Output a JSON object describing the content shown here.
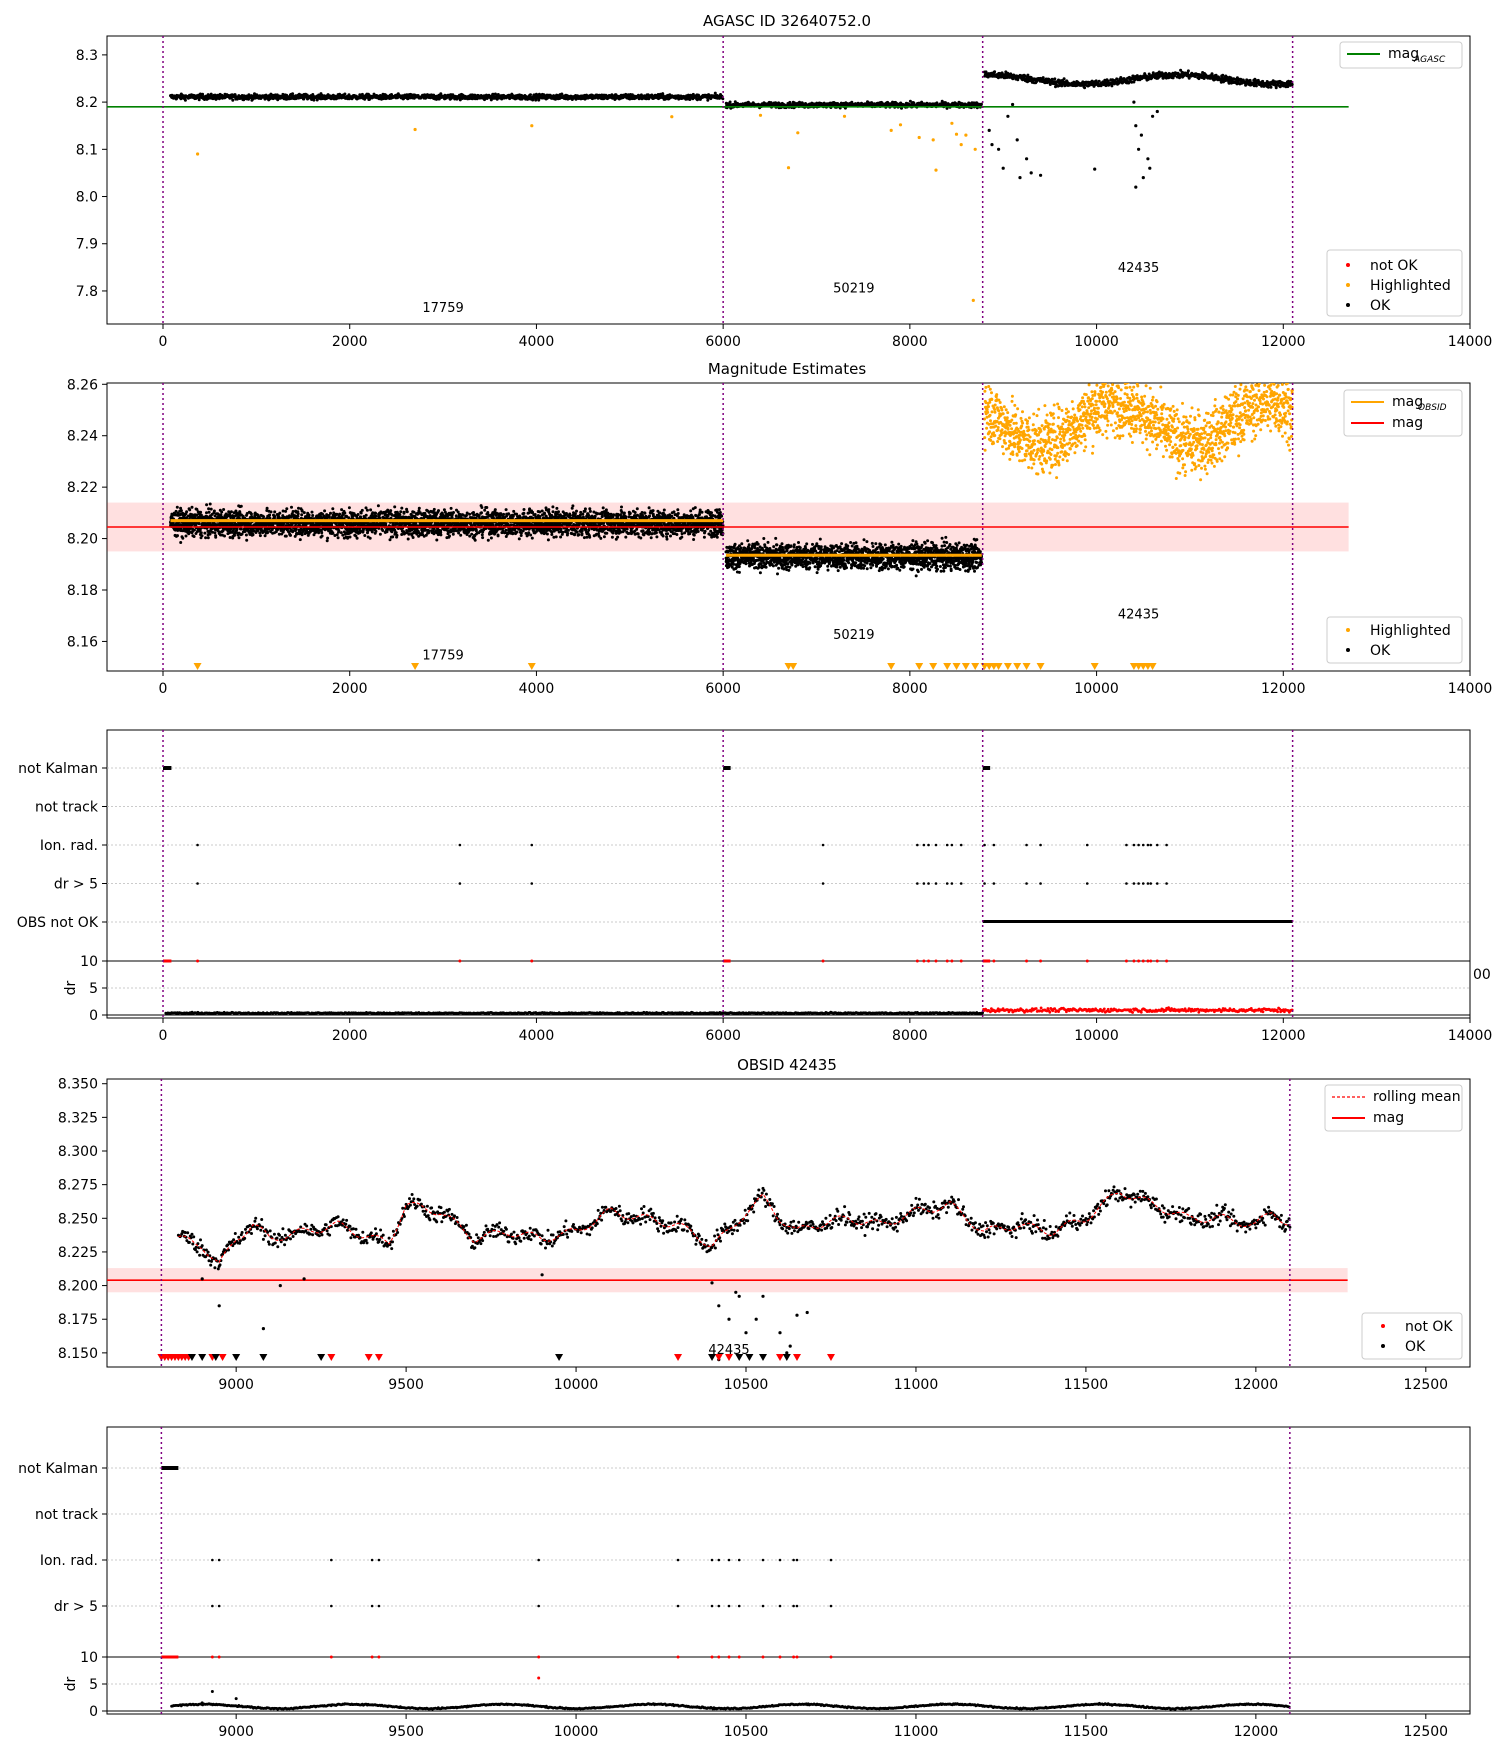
{
  "figure": {
    "title": "AGASC ID 32640752.0"
  },
  "chart_data": [
    {
      "type": "scatter",
      "title": "AGASC ID 32640752.0",
      "xlabel": "",
      "ylabel": "",
      "xlim": [
        -600,
        14000
      ],
      "ylim": [
        7.73,
        8.34
      ],
      "xticks": [
        0,
        2000,
        4000,
        6000,
        8000,
        10000,
        12000,
        14000
      ],
      "yticks": [
        7.8,
        7.9,
        8.0,
        8.1,
        8.2,
        8.3
      ],
      "obs_boundaries": [
        0,
        6000,
        8780,
        12100
      ],
      "lines": [
        {
          "name": "mag$_{AGASC}$",
          "label_main": "mag",
          "label_sub": "AGASC",
          "color": "#008000",
          "y": 8.19,
          "x": [
            -600,
            12700
          ]
        }
      ],
      "segments": [
        {
          "obsid": "17759",
          "x": [
            80,
            6000
          ],
          "mean": 8.211,
          "spread": 0.009,
          "label_x": 3000,
          "label_y": 7.755
        },
        {
          "obsid": "50219",
          "x": [
            6030,
            8770
          ],
          "mean": 8.194,
          "spread": 0.009,
          "label_x": 7400,
          "label_y": 7.797
        },
        {
          "obsid": "42435",
          "x": [
            8800,
            12100
          ],
          "mean": 8.248,
          "spread": 0.012,
          "label_x": 10450,
          "label_y": 7.84
        }
      ],
      "highlighted_points": [
        [
          370,
          8.09
        ],
        [
          2700,
          8.142
        ],
        [
          3950,
          8.15
        ],
        [
          5450,
          8.169
        ],
        [
          6400,
          8.172
        ],
        [
          6700,
          8.061
        ],
        [
          6800,
          8.135
        ],
        [
          7300,
          8.17
        ],
        [
          7800,
          8.14
        ],
        [
          7900,
          8.152
        ],
        [
          8100,
          8.125
        ],
        [
          8250,
          8.12
        ],
        [
          8280,
          8.056
        ],
        [
          8450,
          8.155
        ],
        [
          8500,
          8.132
        ],
        [
          8550,
          8.11
        ],
        [
          8600,
          8.13
        ],
        [
          8680,
          7.78
        ],
        [
          8700,
          8.1
        ]
      ],
      "dip_points": [
        [
          8850,
          8.14
        ],
        [
          8880,
          8.11
        ],
        [
          8950,
          8.1
        ],
        [
          9000,
          8.06
        ],
        [
          9050,
          8.17
        ],
        [
          9100,
          8.195
        ],
        [
          9150,
          8.12
        ],
        [
          9180,
          8.04
        ],
        [
          9250,
          8.08
        ],
        [
          9300,
          8.05
        ],
        [
          9400,
          8.045
        ],
        [
          9980,
          8.058
        ],
        [
          10400,
          8.2
        ],
        [
          10420,
          8.15
        ],
        [
          10450,
          8.1
        ],
        [
          10480,
          8.13
        ],
        [
          10500,
          8.04
        ],
        [
          10550,
          8.08
        ],
        [
          10570,
          8.06
        ],
        [
          10600,
          8.17
        ],
        [
          10650,
          8.18
        ],
        [
          10420,
          8.02
        ]
      ],
      "legends": [
        {
          "position": "top-right",
          "entries": [
            "mag$_{AGASC}$"
          ]
        },
        {
          "position": "bottom-right",
          "entries": [
            "not OK",
            "Highlighted",
            "OK"
          ],
          "colors": [
            "#ff0000",
            "#ffa500",
            "#000000"
          ]
        }
      ]
    },
    {
      "type": "scatter",
      "title": "Magnitude Estimates",
      "xlabel": "",
      "ylabel": "",
      "xlim": [
        -600,
        14000
      ],
      "ylim": [
        8.1485,
        8.2605
      ],
      "xticks": [
        0,
        2000,
        4000,
        6000,
        8000,
        10000,
        12000,
        14000
      ],
      "yticks": [
        8.16,
        8.18,
        8.2,
        8.22,
        8.24,
        8.26
      ],
      "obs_boundaries": [
        0,
        6000,
        8780,
        12100
      ],
      "mag_line": {
        "name": "mag",
        "color": "#ff0000",
        "y": 8.2045,
        "band": [
          8.195,
          8.214
        ],
        "x": [
          -600,
          12700
        ]
      },
      "obsid_mag_lines": [
        {
          "x": [
            80,
            6000
          ],
          "y": 8.207
        },
        {
          "x": [
            6030,
            8770
          ],
          "y": 8.1935
        }
      ],
      "segments": [
        {
          "obsid": "17759",
          "x": [
            80,
            6000
          ],
          "mean": 8.206,
          "spread": 0.009,
          "label_x": 3000,
          "label_y": 8.153
        },
        {
          "obsid": "50219",
          "x": [
            6030,
            8770
          ],
          "mean": 8.193,
          "spread": 0.009,
          "label_x": 7400,
          "label_y": 8.161
        },
        {
          "obsid": "42435",
          "x": [
            8800,
            12100
          ],
          "mean": 8.245,
          "spread": 0.013,
          "label_x": 10450,
          "label_y": 8.169,
          "highlighted": true
        }
      ],
      "lower_markers_x": [
        370,
        2700,
        3950,
        6700,
        6750,
        7800,
        8100,
        8250,
        8400,
        8500,
        8600,
        8700,
        8800,
        8850,
        8900,
        8950,
        9050,
        9150,
        9250,
        9400,
        9980,
        10400,
        10450,
        10500,
        10550,
        10600
      ],
      "legends": [
        {
          "position": "top-right",
          "entries": [
            "mag$_{OBSID}$",
            "mag"
          ],
          "label_main": "mag",
          "label_sub": "OBSID",
          "colors": [
            "#ffa500",
            "#ff0000"
          ]
        },
        {
          "position": "bottom-right",
          "entries": [
            "Highlighted",
            "OK"
          ],
          "colors": [
            "#ffa500",
            "#000000"
          ]
        }
      ]
    },
    {
      "type": "scatter",
      "title": "",
      "xlim": [
        -600,
        14000
      ],
      "xticks": [
        0,
        2000,
        4000,
        6000,
        8000,
        10000,
        12000,
        14000
      ],
      "categories": [
        "not Kalman",
        "not track",
        "Ion. rad.",
        "dr > 5",
        "OBS not OK"
      ],
      "obs_boundaries": [
        0,
        6000,
        8780,
        12100
      ],
      "not_kalman_x": [
        [
          0,
          90
        ],
        [
          6000,
          6080
        ],
        [
          8780,
          8860
        ]
      ],
      "flag_x": [
        370,
        3180,
        3950,
        7070,
        8080,
        8150,
        8200,
        8280,
        8400,
        8450,
        8550,
        8800,
        8900,
        9250,
        9400,
        9900,
        10320,
        10400,
        10450,
        10500,
        10550,
        10580,
        10650,
        10750
      ],
      "obs_not_ok_x": [
        8780,
        12100
      ],
      "dr": {
        "ylabel": "dr",
        "ylim": [
          0,
          10
        ],
        "yticks": [
          0,
          5,
          10
        ],
        "cutoff_label": "00"
      }
    },
    {
      "type": "scatter",
      "title": "OBSID 42435",
      "xlabel": "",
      "ylabel": "",
      "xlim": [
        8620,
        12630
      ],
      "ylim": [
        8.1395,
        8.3535
      ],
      "xticks": [
        9000,
        9500,
        10000,
        10500,
        11000,
        11500,
        12000,
        12500
      ],
      "yticks": [
        8.15,
        8.175,
        8.2,
        8.225,
        8.25,
        8.275,
        8.3,
        8.325,
        8.35
      ],
      "obs_boundaries": [
        8780,
        12100
      ],
      "mag_line": {
        "name": "mag",
        "color": "#ff0000",
        "y": 8.204,
        "band": [
          8.195,
          8.213
        ],
        "x": [
          8620,
          12270
        ]
      },
      "rolling_mean": {
        "name": "rolling mean",
        "color": "#ff0000",
        "style": "dashed"
      },
      "series_x": [
        8830,
        12100
      ],
      "anchors_x": [
        8830,
        8900,
        8950,
        9000,
        9050,
        9100,
        9200,
        9300,
        9400,
        9450,
        9500,
        9600,
        9700,
        9800,
        9900,
        10000,
        10100,
        10200,
        10300,
        10400,
        10450,
        10500,
        10550,
        10600,
        10650,
        10700,
        10800,
        10900,
        11000,
        11100,
        11200,
        11300,
        11400,
        11500,
        11600,
        11700,
        11800,
        11900,
        12000,
        12050,
        12100
      ],
      "anchors_y": [
        8.235,
        8.23,
        8.215,
        8.235,
        8.245,
        8.235,
        8.24,
        8.245,
        8.235,
        8.232,
        8.26,
        8.255,
        8.235,
        8.24,
        8.235,
        8.24,
        8.255,
        8.25,
        8.245,
        8.23,
        8.24,
        8.255,
        8.265,
        8.25,
        8.24,
        8.245,
        8.25,
        8.245,
        8.255,
        8.26,
        8.24,
        8.245,
        8.24,
        8.25,
        8.27,
        8.26,
        8.25,
        8.25,
        8.245,
        8.255,
        8.245
      ],
      "dip_points": [
        [
          8900,
          8.205
        ],
        [
          8950,
          8.185
        ],
        [
          9080,
          8.168
        ],
        [
          9130,
          8.2
        ],
        [
          9200,
          8.205
        ],
        [
          9900,
          8.208
        ],
        [
          10400,
          8.202
        ],
        [
          10420,
          8.185
        ],
        [
          10450,
          8.175
        ],
        [
          10470,
          8.195
        ],
        [
          10420,
          8.145
        ],
        [
          10480,
          8.192
        ],
        [
          10500,
          8.165
        ],
        [
          10530,
          8.175
        ],
        [
          10550,
          8.192
        ],
        [
          10600,
          8.165
        ],
        [
          10630,
          8.155
        ],
        [
          10650,
          8.178
        ],
        [
          10680,
          8.18
        ],
        [
          10620,
          8.15
        ]
      ],
      "lower_markers_red_x": [
        8780,
        8790,
        8800,
        8810,
        8820,
        8830,
        8840,
        8850,
        8860,
        8930,
        8960,
        9280,
        9390,
        9420,
        10300,
        10420,
        10450,
        10600,
        10650,
        10750
      ],
      "lower_markers_black_x": [
        8870,
        8900,
        8940,
        9000,
        9080,
        9250,
        9950,
        10400,
        10480,
        10510,
        10550,
        10620
      ],
      "annotation": {
        "text": "42435",
        "x": 10450,
        "y": 8.149
      },
      "legends": [
        {
          "position": "top-right",
          "entries": [
            "rolling mean",
            "mag"
          ]
        },
        {
          "position": "bottom-right",
          "entries": [
            "not OK",
            "OK"
          ],
          "colors": [
            "#ff0000",
            "#000000"
          ]
        }
      ]
    },
    {
      "type": "scatter",
      "title": "",
      "xlim": [
        8620,
        12630
      ],
      "xticks": [
        9000,
        9500,
        10000,
        10500,
        11000,
        11500,
        12000,
        12500
      ],
      "categories": [
        "not Kalman",
        "not track",
        "Ion. rad.",
        "dr > 5"
      ],
      "obs_boundaries": [
        8780,
        12100
      ],
      "not_kalman_x": [
        [
          8780,
          8830
        ]
      ],
      "flag_x": [
        8930,
        8950,
        9280,
        9400,
        9420,
        9890,
        10300,
        10400,
        10420,
        10450,
        10480,
        10550,
        10600,
        10640,
        10650,
        10750
      ],
      "dr": {
        "ylabel": "dr",
        "ylim": [
          0,
          10
        ],
        "yticks": [
          0,
          5,
          10
        ],
        "extra_points": [
          [
            8930,
            3.6
          ],
          [
            9890,
            6.1
          ],
          [
            8900,
            1.5
          ],
          [
            9000,
            2.3
          ]
        ]
      }
    }
  ]
}
